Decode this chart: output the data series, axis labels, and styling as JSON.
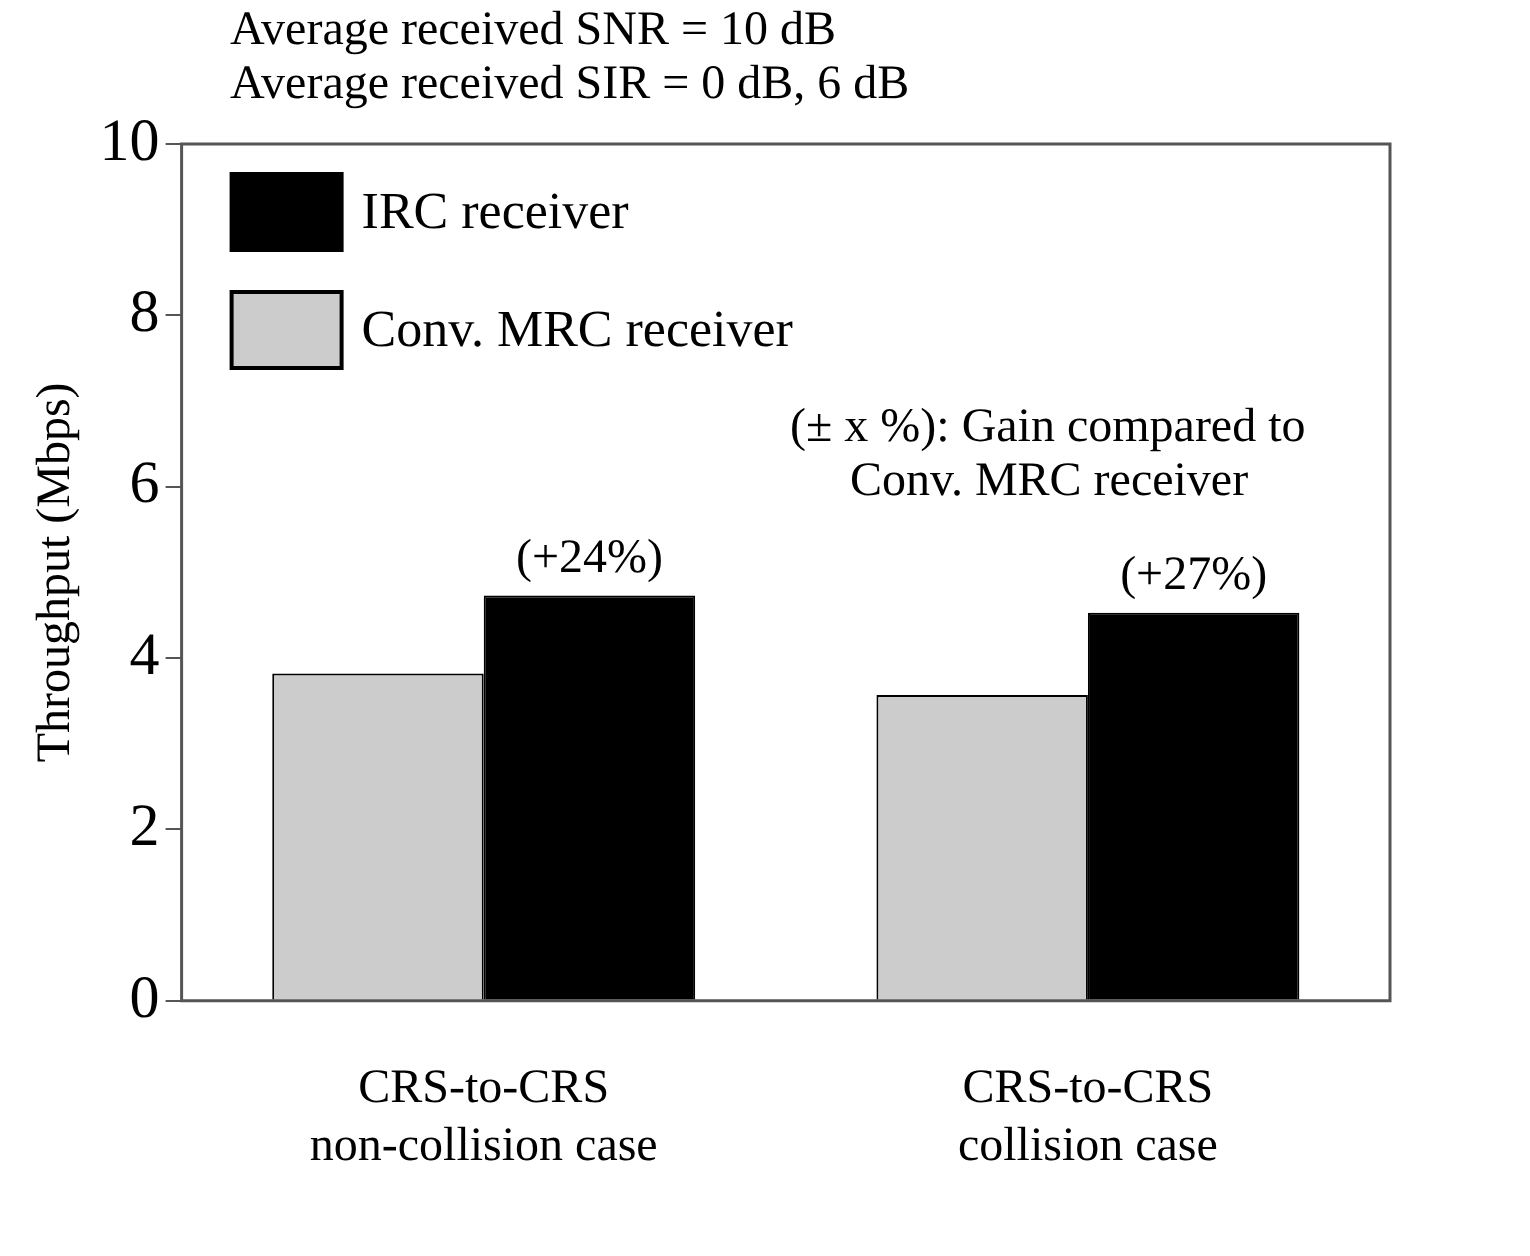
{
  "chart_data": {
    "type": "bar",
    "title": "Average received SNR = 10 dB",
    "subtitle": "Average received SIR = 0 dB, 6 dB",
    "ylabel": "Throughput (Mbps)",
    "categories": [
      "CRS-to-CRS\nnon-collision case",
      "CRS-to-CRS\ncollision case"
    ],
    "series": [
      {
        "name": "IRC receiver",
        "color": "#000000",
        "values": [
          4.73,
          4.53
        ]
      },
      {
        "name": "Conv. MRC receiver",
        "color": "#cccccc",
        "values": [
          3.82,
          3.57
        ]
      }
    ],
    "ylim": [
      0,
      10
    ],
    "yticks": [
      0,
      2,
      4,
      6,
      8,
      10
    ],
    "grid": false,
    "legend": "top left",
    "annotations": [
      {
        "text": "(+24%)",
        "x": "CRS-to-CRS\nnon-collision case",
        "y": 4.73
      },
      {
        "text": "(+27%)",
        "x": "CRS-to-CRS\ncollision case",
        "y": 4.53
      },
      "(± x %): Gain compared to\nConv. MRC receiver"
    ]
  }
}
